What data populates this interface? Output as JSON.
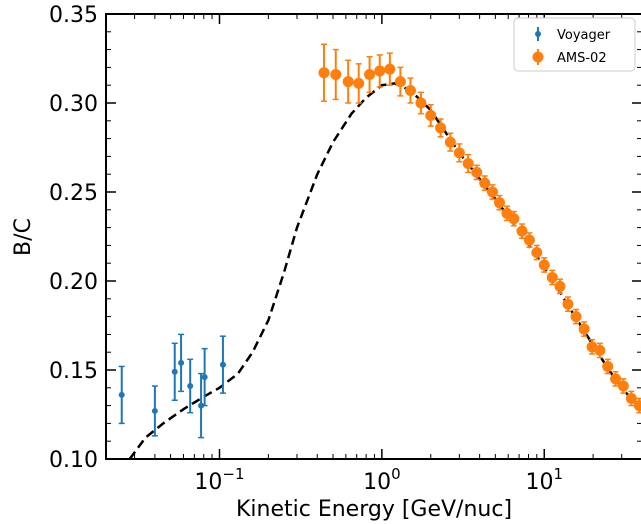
{
  "chart_data": {
    "type": "scatter",
    "xlabel": "Kinetic Energy [GeV/nuc]",
    "ylabel": "B/C",
    "xscale": "log",
    "xlim": [
      0.02,
      40
    ],
    "ylim": [
      0.1,
      0.35
    ],
    "grid": false,
    "legend_position": "top-right",
    "y_ticks": [
      "0.10",
      "0.15",
      "0.20",
      "0.25",
      "0.30",
      "0.35"
    ],
    "x_ticks": [
      {
        "value": 0.1,
        "base": "10",
        "exp": "−1"
      },
      {
        "value": 1,
        "base": "10",
        "exp": "0"
      },
      {
        "value": 10,
        "base": "10",
        "exp": "1"
      }
    ],
    "colors": {
      "voyager": "#1f77b4",
      "ams": "#ff7f0e",
      "model": "#000000"
    },
    "series": [
      {
        "name": "Voyager",
        "marker": "small-circle",
        "points": [
          {
            "x": 0.025,
            "y": 0.136,
            "err": 0.016
          },
          {
            "x": 0.04,
            "y": 0.127,
            "err": 0.014
          },
          {
            "x": 0.053,
            "y": 0.149,
            "err": 0.016
          },
          {
            "x": 0.058,
            "y": 0.154,
            "err": 0.016
          },
          {
            "x": 0.066,
            "y": 0.141,
            "err": 0.015
          },
          {
            "x": 0.077,
            "y": 0.13,
            "err": 0.018
          },
          {
            "x": 0.081,
            "y": 0.146,
            "err": 0.016
          },
          {
            "x": 0.105,
            "y": 0.153,
            "err": 0.016
          }
        ]
      },
      {
        "name": "AMS-02",
        "marker": "circle",
        "points": [
          {
            "x": 0.44,
            "y": 0.317,
            "err": 0.016
          },
          {
            "x": 0.52,
            "y": 0.316,
            "err": 0.014
          },
          {
            "x": 0.62,
            "y": 0.312,
            "err": 0.012
          },
          {
            "x": 0.72,
            "y": 0.311,
            "err": 0.011
          },
          {
            "x": 0.84,
            "y": 0.316,
            "err": 0.01
          },
          {
            "x": 0.97,
            "y": 0.318,
            "err": 0.009
          },
          {
            "x": 1.12,
            "y": 0.319,
            "err": 0.009
          },
          {
            "x": 1.3,
            "y": 0.312,
            "err": 0.008
          },
          {
            "x": 1.5,
            "y": 0.307,
            "err": 0.007
          },
          {
            "x": 1.74,
            "y": 0.3,
            "err": 0.006
          },
          {
            "x": 2.0,
            "y": 0.293,
            "err": 0.006
          },
          {
            "x": 2.3,
            "y": 0.286,
            "err": 0.005
          },
          {
            "x": 2.64,
            "y": 0.278,
            "err": 0.005
          },
          {
            "x": 3.0,
            "y": 0.272,
            "err": 0.005
          },
          {
            "x": 3.4,
            "y": 0.266,
            "err": 0.005
          },
          {
            "x": 3.84,
            "y": 0.261,
            "err": 0.004
          },
          {
            "x": 4.3,
            "y": 0.255,
            "err": 0.004
          },
          {
            "x": 4.8,
            "y": 0.25,
            "err": 0.004
          },
          {
            "x": 5.3,
            "y": 0.244,
            "err": 0.004
          },
          {
            "x": 5.9,
            "y": 0.238,
            "err": 0.004
          },
          {
            "x": 6.5,
            "y": 0.235,
            "err": 0.004
          },
          {
            "x": 7.3,
            "y": 0.228,
            "err": 0.004
          },
          {
            "x": 8.1,
            "y": 0.223,
            "err": 0.004
          },
          {
            "x": 9.0,
            "y": 0.216,
            "err": 0.004
          },
          {
            "x": 10.0,
            "y": 0.209,
            "err": 0.004
          },
          {
            "x": 11.2,
            "y": 0.202,
            "err": 0.004
          },
          {
            "x": 12.5,
            "y": 0.197,
            "err": 0.004
          },
          {
            "x": 14.0,
            "y": 0.187,
            "err": 0.004
          },
          {
            "x": 15.7,
            "y": 0.18,
            "err": 0.004
          },
          {
            "x": 17.6,
            "y": 0.173,
            "err": 0.004
          },
          {
            "x": 19.7,
            "y": 0.163,
            "err": 0.004
          },
          {
            "x": 22.0,
            "y": 0.161,
            "err": 0.004
          },
          {
            "x": 24.6,
            "y": 0.152,
            "err": 0.004
          },
          {
            "x": 27.5,
            "y": 0.145,
            "err": 0.004
          },
          {
            "x": 30.7,
            "y": 0.141,
            "err": 0.004
          },
          {
            "x": 34.4,
            "y": 0.134,
            "err": 0.004
          },
          {
            "x": 38.5,
            "y": 0.13,
            "err": 0.004
          }
        ]
      },
      {
        "marker": "dashed-line",
        "points": [
          {
            "x": 0.028,
            "y": 0.1
          },
          {
            "x": 0.035,
            "y": 0.112
          },
          {
            "x": 0.045,
            "y": 0.12
          },
          {
            "x": 0.06,
            "y": 0.128
          },
          {
            "x": 0.08,
            "y": 0.135
          },
          {
            "x": 0.1,
            "y": 0.14
          },
          {
            "x": 0.13,
            "y": 0.148
          },
          {
            "x": 0.16,
            "y": 0.16
          },
          {
            "x": 0.2,
            "y": 0.178
          },
          {
            "x": 0.25,
            "y": 0.205
          },
          {
            "x": 0.3,
            "y": 0.23
          },
          {
            "x": 0.4,
            "y": 0.26
          },
          {
            "x": 0.5,
            "y": 0.278
          },
          {
            "x": 0.65,
            "y": 0.294
          },
          {
            "x": 0.8,
            "y": 0.303
          },
          {
            "x": 1.0,
            "y": 0.31
          },
          {
            "x": 1.2,
            "y": 0.311
          },
          {
            "x": 1.5,
            "y": 0.307
          },
          {
            "x": 2.0,
            "y": 0.296
          },
          {
            "x": 3.0,
            "y": 0.272
          },
          {
            "x": 5.0,
            "y": 0.246
          },
          {
            "x": 7.0,
            "y": 0.228
          },
          {
            "x": 10.0,
            "y": 0.208
          },
          {
            "x": 15.0,
            "y": 0.182
          },
          {
            "x": 20.0,
            "y": 0.164
          },
          {
            "x": 25.0,
            "y": 0.15
          },
          {
            "x": 30.0,
            "y": 0.14
          },
          {
            "x": 40.0,
            "y": 0.127
          }
        ]
      }
    ]
  }
}
